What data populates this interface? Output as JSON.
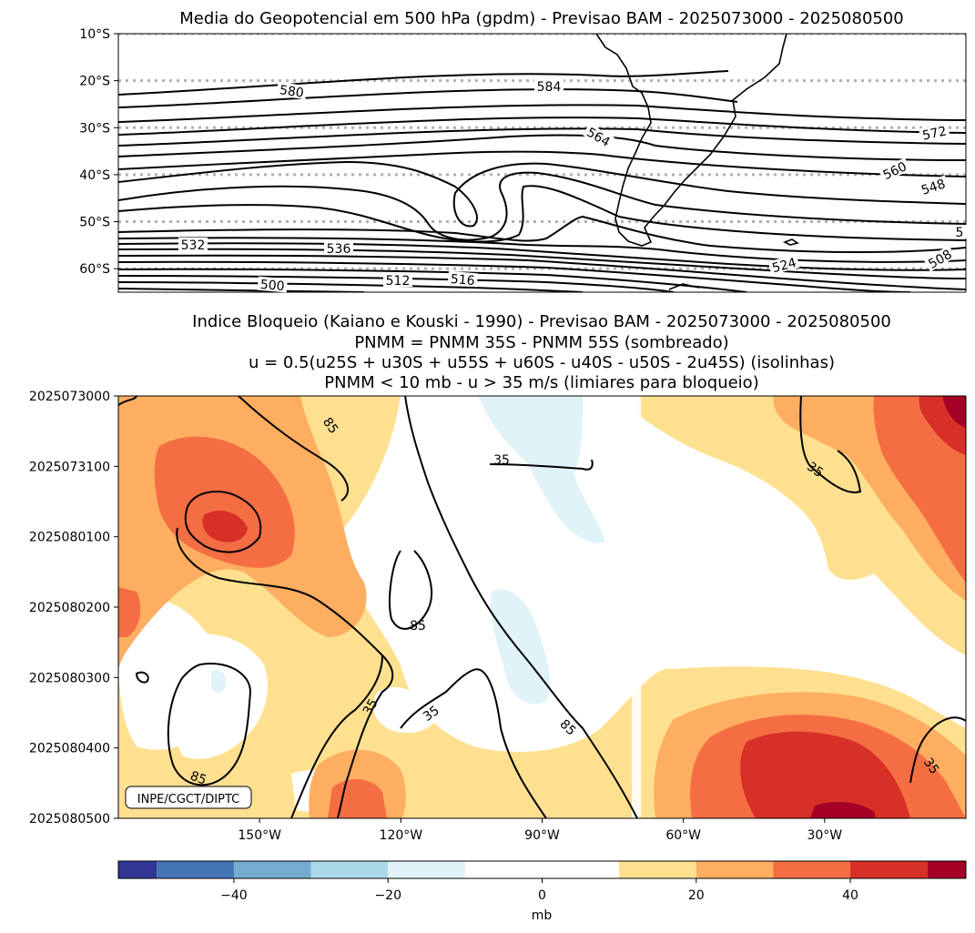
{
  "chart_data": [
    {
      "type": "contour",
      "title": "Media do Geopotencial em 500 hPa (gpdm) - Previsao BAM - 2025073000 - 2025080500",
      "y_ticks": [
        "10°S",
        "20°S",
        "30°S",
        "40°S",
        "50°S",
        "60°S"
      ],
      "y_values": [
        -10,
        -20,
        -30,
        -40,
        -50,
        -60
      ],
      "ylim": [
        -65,
        -10
      ],
      "contour_labels": [
        "580",
        "584",
        "564",
        "572",
        "560",
        "548",
        "532",
        "536",
        "524",
        "508",
        "500",
        "512",
        "516",
        "5"
      ],
      "contour_levels_gpdm": [
        500,
        504,
        508,
        512,
        516,
        520,
        524,
        528,
        532,
        536,
        540,
        544,
        548,
        552,
        556,
        560,
        564,
        568,
        572,
        576,
        580,
        584
      ]
    },
    {
      "type": "filled-contour",
      "title_lines": [
        "Indice Bloqueio (Kaiano e Kouski - 1990) - Previsao BAM - 2025073000 - 2025080500",
        "PNMM = PNMM 35S - PNMM 55S (sombreado)",
        "u = 0.5(u25S + u30S + u55S + u60S - u40S - u50S - 2u45S) (isolinhas)",
        "PNMM < 10 mb - u > 35 m/s (limiares para bloqueio)"
      ],
      "x_ticks": [
        "150°W",
        "120°W",
        "90°W",
        "60°W",
        "30°W"
      ],
      "x_values": [
        -150,
        -120,
        -90,
        -60,
        -30
      ],
      "xlim": [
        -180,
        0
      ],
      "y_ticks": [
        "2025073000",
        "2025073100",
        "2025080100",
        "2025080200",
        "2025080300",
        "2025080400",
        "2025080500"
      ],
      "contour_labels": [
        "85",
        "35",
        "35",
        "85",
        "35",
        "85",
        "35",
        "35",
        "85"
      ],
      "contour_levels_ms": [
        35,
        85
      ],
      "watermark": "INPE/CGCT/DIPTC"
    }
  ],
  "colorbar": {
    "label": "mb",
    "ticks": [
      "−40",
      "−20",
      "0",
      "20",
      "40"
    ],
    "tick_values": [
      -40,
      -20,
      0,
      20,
      40
    ],
    "range": [
      -55,
      55
    ],
    "bounds": [
      -55,
      -50,
      -40,
      -30,
      -20,
      -10,
      10,
      20,
      30,
      40,
      50,
      55
    ],
    "colors": [
      "#313695",
      "#4575b4",
      "#74add1",
      "#abd9e9",
      "#e0f3f8",
      "#ffffff",
      "#fee090",
      "#fdae61",
      "#f46d43",
      "#d73027",
      "#a50026"
    ]
  }
}
